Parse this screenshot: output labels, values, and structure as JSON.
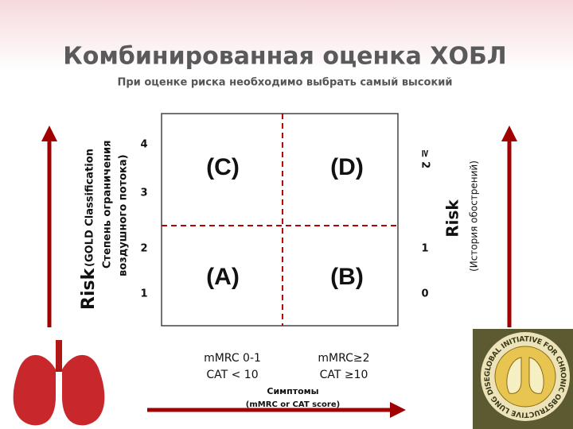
{
  "header": {
    "title": "Комбинированная оценка ХОБЛ",
    "subtitle": "При оценке риска необходимо выбрать самый высокий"
  },
  "left_axis": {
    "label": "Risk",
    "classification": "(GOLD Classification",
    "line2": "Степень ограничения",
    "line3": "воздушного потока)",
    "grades": [
      "4",
      "3",
      "2",
      "1"
    ]
  },
  "right_axis": {
    "label": "Risk",
    "sublabel": "(История обострений)",
    "grades": [
      "≥ 2",
      "1",
      "0"
    ]
  },
  "quadrants": [
    "(C)",
    "(D)",
    "(A)",
    "(B)"
  ],
  "bottom_axis": {
    "left": [
      "mMRC 0-1",
      "CAT < 10"
    ],
    "right": [
      "mMRC≥2",
      "CAT ≥10"
    ],
    "label": "Симптомы",
    "sublabel": "(mMRC or CAT score)"
  },
  "logo": {
    "text": "GLOBAL INITIATIVE FOR CHRONIC OBSTRUCTIVE LUNG DISEASE"
  }
}
